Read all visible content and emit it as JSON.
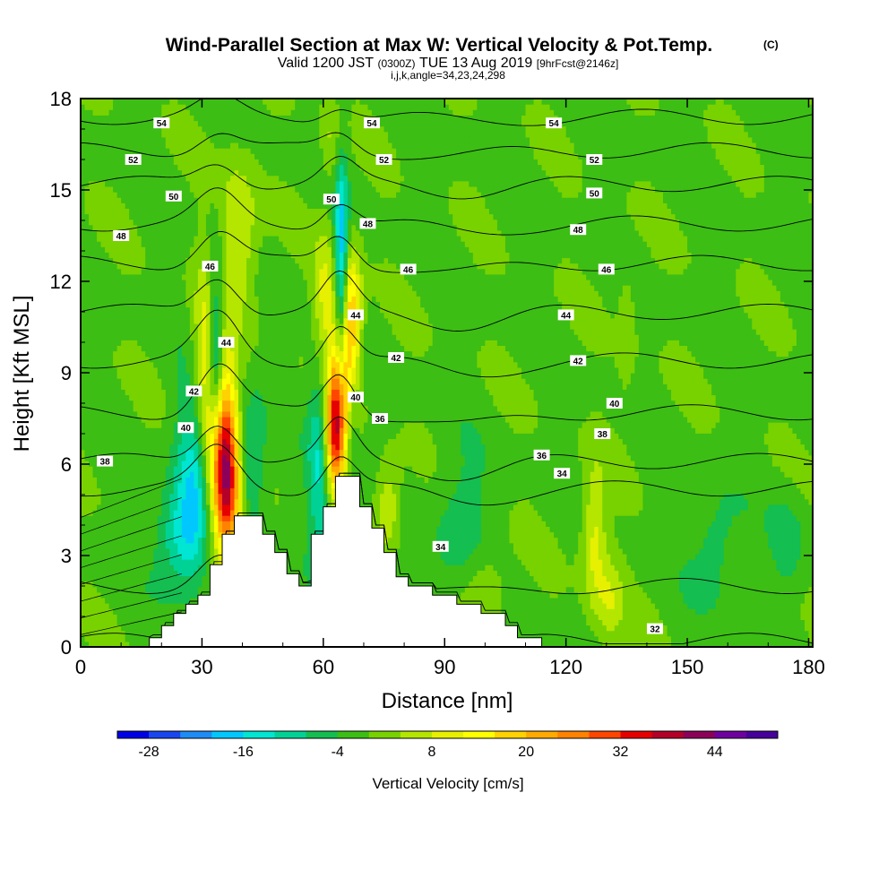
{
  "chart_data": {
    "type": "heatmap",
    "title": "Wind-Parallel Section at Max W: Vertical Velocity & Pot.Temp.",
    "title_mark": "(C)",
    "subtitle_parts": [
      "Valid 1200 JST",
      "(0300Z)",
      "TUE 13 Aug 2019",
      "[9hrFcst@2146z]"
    ],
    "subtitle_line2": "i,j,k,angle=34,23,24,298",
    "xlabel": "Distance [nm]",
    "ylabel": "Height [Kft MSL]",
    "xlim": [
      0,
      181
    ],
    "ylim": [
      0,
      18
    ],
    "x_ticks": [
      0,
      30,
      60,
      90,
      120,
      150,
      180
    ],
    "y_ticks": [
      0,
      3,
      6,
      9,
      12,
      15,
      18
    ],
    "colorbar": {
      "label": "Vertical Velocity [cm/s]",
      "range": [
        -32,
        52
      ],
      "step": 4,
      "tick_values": [
        -28,
        -16,
        -4,
        8,
        20,
        32,
        44
      ],
      "colors": [
        "#0000e6",
        "#1a46f0",
        "#1e8cf5",
        "#00c8ff",
        "#00e6d2",
        "#00d296",
        "#14be50",
        "#3cbe14",
        "#78d200",
        "#b4e600",
        "#e6f000",
        "#ffff00",
        "#ffd200",
        "#ffaa00",
        "#ff8200",
        "#ff4600",
        "#e60000",
        "#b40028",
        "#8c005a",
        "#6e00a0",
        "#46009b"
      ]
    },
    "terrain_profile": [
      [
        0,
        0
      ],
      [
        17,
        0
      ],
      [
        17,
        0.3
      ],
      [
        20,
        0.3
      ],
      [
        20,
        0.7
      ],
      [
        23,
        0.7
      ],
      [
        23,
        1.1
      ],
      [
        26,
        1.1
      ],
      [
        26,
        1.4
      ],
      [
        29,
        1.4
      ],
      [
        29,
        1.7
      ],
      [
        32,
        1.7
      ],
      [
        32,
        2.7
      ],
      [
        35,
        2.7
      ],
      [
        35,
        3.7
      ],
      [
        38,
        3.7
      ],
      [
        38,
        4.3
      ],
      [
        45,
        4.3
      ],
      [
        45,
        3.7
      ],
      [
        48,
        3.7
      ],
      [
        48,
        3.1
      ],
      [
        51,
        3.1
      ],
      [
        51,
        2.4
      ],
      [
        54,
        2.4
      ],
      [
        54,
        2.0
      ],
      [
        57,
        2.0
      ],
      [
        57,
        3.7
      ],
      [
        60,
        3.7
      ],
      [
        60,
        4.6
      ],
      [
        63,
        4.6
      ],
      [
        63,
        5.6
      ],
      [
        69,
        5.6
      ],
      [
        69,
        4.6
      ],
      [
        72,
        4.6
      ],
      [
        72,
        3.9
      ],
      [
        75,
        3.9
      ],
      [
        75,
        3.1
      ],
      [
        78,
        3.1
      ],
      [
        78,
        2.3
      ],
      [
        81,
        2.3
      ],
      [
        81,
        2.0
      ],
      [
        87,
        2.0
      ],
      [
        87,
        1.7
      ],
      [
        93,
        1.7
      ],
      [
        93,
        1.4
      ],
      [
        99,
        1.4
      ],
      [
        99,
        1.1
      ],
      [
        105,
        1.1
      ],
      [
        105,
        0.7
      ],
      [
        108,
        0.7
      ],
      [
        108,
        0.3
      ],
      [
        114,
        0.3
      ],
      [
        114,
        0
      ],
      [
        181,
        0
      ]
    ],
    "w_features": [
      {
        "x": 35,
        "z": 6.2,
        "sx": 2.6,
        "sz": 2.0,
        "w": 42
      },
      {
        "x": 37,
        "z": 4.6,
        "sx": 2.2,
        "sz": 1.3,
        "w": 14
      },
      {
        "x": 33,
        "z": 10.0,
        "sx": 2.2,
        "sz": 1.6,
        "w": 12
      },
      {
        "x": 31,
        "z": 8.0,
        "sx": 2.8,
        "sz": 2.6,
        "w": 13
      },
      {
        "x": 39,
        "z": 13.5,
        "sx": 3.5,
        "sz": 1.8,
        "w": 10
      },
      {
        "x": 33.5,
        "z": 9.3,
        "sx": 1.5,
        "sz": 2.3,
        "w": -30
      },
      {
        "x": 29,
        "z": 6.0,
        "sx": 3.5,
        "sz": 2.0,
        "w": -18
      },
      {
        "x": 25,
        "z": 3.5,
        "sx": 4.5,
        "sz": 1.2,
        "w": -12
      },
      {
        "x": 42,
        "z": 6.0,
        "sx": 2.5,
        "sz": 1.5,
        "w": -10
      },
      {
        "x": 63,
        "z": 7.0,
        "sx": 1.8,
        "sz": 1.4,
        "w": 34
      },
      {
        "x": 65,
        "z": 9.5,
        "sx": 2.2,
        "sz": 2.0,
        "w": 26
      },
      {
        "x": 60,
        "z": 11.5,
        "sx": 1.8,
        "sz": 1.5,
        "w": 10
      },
      {
        "x": 67,
        "z": 11.0,
        "sx": 1.8,
        "sz": 1.5,
        "w": 12
      },
      {
        "x": 64.5,
        "z": 11.5,
        "sx": 1.2,
        "sz": 2.8,
        "w": -26
      },
      {
        "x": 59,
        "z": 6.0,
        "sx": 2.0,
        "sz": 2.5,
        "w": -12
      },
      {
        "x": 67,
        "z": 7.5,
        "sx": 1.2,
        "sz": 1.5,
        "w": -10
      },
      {
        "x": 76,
        "z": 4.6,
        "sx": 2.2,
        "sz": 1.0,
        "w": 10
      },
      {
        "x": 94,
        "z": 4.0,
        "sx": 5.0,
        "sz": 1.6,
        "w": -6
      },
      {
        "x": 127,
        "z": 3.6,
        "sx": 2.2,
        "sz": 1.6,
        "w": 11
      },
      {
        "x": 131,
        "z": 1.5,
        "sx": 2.5,
        "sz": 1.0,
        "w": 8
      },
      {
        "x": 100,
        "z": 2.0,
        "sx": 4.0,
        "sz": 1.0,
        "w": 6
      },
      {
        "x": 157,
        "z": 3.3,
        "sx": 4.5,
        "sz": 1.4,
        "w": -6
      },
      {
        "x": 175,
        "z": 3.5,
        "sx": 3.0,
        "sz": 1.2,
        "w": -5
      },
      {
        "x": 70,
        "z": 2.5,
        "sx": 1.5,
        "sz": 0.8,
        "w": 14
      },
      {
        "x": 62,
        "z": 16.5,
        "sx": 1.8,
        "sz": 1.0,
        "w": 6
      },
      {
        "x": 135,
        "z": 10.5,
        "sx": 1.5,
        "sz": 1.5,
        "w": 5
      }
    ],
    "background_w": -1,
    "theta_levels": [
      32,
      34,
      36,
      38,
      40,
      42,
      44,
      46,
      48,
      50,
      52,
      54
    ],
    "theta_level_heights": [
      [
        32,
        0.2
      ],
      [
        34,
        2.0
      ],
      [
        36,
        5.2
      ],
      [
        38,
        6.1
      ],
      [
        40,
        7.7
      ],
      [
        42,
        9.4
      ],
      [
        44,
        11.0
      ],
      [
        46,
        12.6
      ],
      [
        48,
        13.9
      ],
      [
        50,
        15.2
      ],
      [
        52,
        16.3
      ],
      [
        54,
        17.4
      ]
    ],
    "theta_labels": [
      {
        "level": 54,
        "x": 20,
        "z": 17.2
      },
      {
        "level": 54,
        "x": 72,
        "z": 17.2
      },
      {
        "level": 54,
        "x": 117,
        "z": 17.2
      },
      {
        "level": 52,
        "x": 13,
        "z": 16.0
      },
      {
        "level": 52,
        "x": 75,
        "z": 16.0
      },
      {
        "level": 52,
        "x": 127,
        "z": 16.0
      },
      {
        "level": 50,
        "x": 23,
        "z": 14.8
      },
      {
        "level": 50,
        "x": 62,
        "z": 14.7
      },
      {
        "level": 50,
        "x": 127,
        "z": 14.9
      },
      {
        "level": 48,
        "x": 10,
        "z": 13.5
      },
      {
        "level": 48,
        "x": 71,
        "z": 13.9
      },
      {
        "level": 48,
        "x": 123,
        "z": 13.7
      },
      {
        "level": 46,
        "x": 32,
        "z": 12.5
      },
      {
        "level": 46,
        "x": 81,
        "z": 12.4
      },
      {
        "level": 46,
        "x": 130,
        "z": 12.4
      },
      {
        "level": 44,
        "x": 36,
        "z": 10.0
      },
      {
        "level": 44,
        "x": 68,
        "z": 10.9
      },
      {
        "level": 44,
        "x": 120,
        "z": 10.9
      },
      {
        "level": 42,
        "x": 28,
        "z": 8.4
      },
      {
        "level": 42,
        "x": 78,
        "z": 9.5
      },
      {
        "level": 42,
        "x": 123,
        "z": 9.4
      },
      {
        "level": 40,
        "x": 26,
        "z": 7.2
      },
      {
        "level": 40,
        "x": 68,
        "z": 8.2
      },
      {
        "level": 40,
        "x": 132,
        "z": 8.0
      },
      {
        "level": 38,
        "x": 6,
        "z": 6.1
      },
      {
        "level": 38,
        "x": 129,
        "z": 7.0
      },
      {
        "level": 36,
        "x": 74,
        "z": 7.5
      },
      {
        "level": 36,
        "x": 114,
        "z": 6.3
      },
      {
        "level": 34,
        "x": 119,
        "z": 5.7
      },
      {
        "level": 34,
        "x": 89,
        "z": 3.3
      },
      {
        "level": 32,
        "x": 142,
        "z": 0.6
      }
    ]
  }
}
